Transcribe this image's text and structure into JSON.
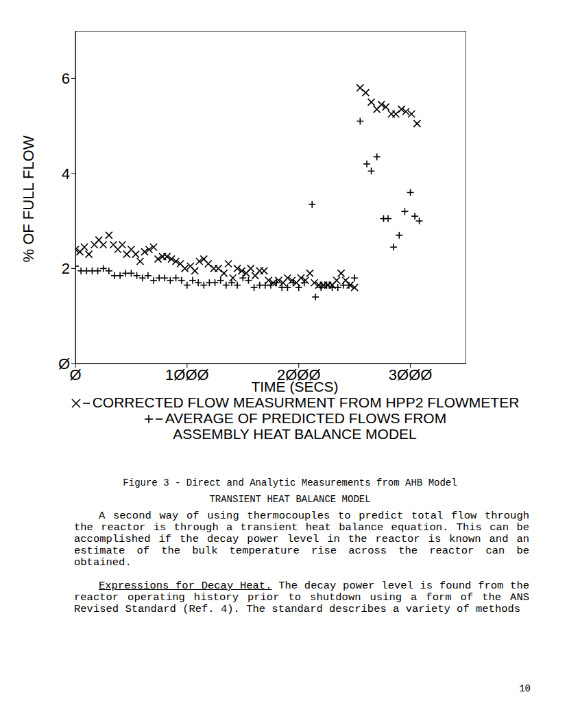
{
  "chart_data": {
    "type": "scatter",
    "x_label": "TIME (SECS)",
    "y_label": "% OF FULL FLOW",
    "xlim": [
      0,
      3500
    ],
    "ylim": [
      0,
      7
    ],
    "xticks": [
      {
        "value": 0,
        "label": "Ø"
      },
      {
        "value": 1000,
        "label": "1ØØØ"
      },
      {
        "value": 2000,
        "label": "2ØØØ"
      },
      {
        "value": 3000,
        "label": "3ØØØ"
      }
    ],
    "yticks": [
      {
        "value": 0,
        "label": "Ø"
      },
      2,
      4,
      6
    ],
    "grid": false,
    "series": [
      {
        "name": "CORRECTED FLOW MEASURMENT FROM HPP2 FLOWMETER",
        "color": "#000000",
        "marker": "x",
        "x": [
          0,
          40,
          80,
          120,
          170,
          210,
          250,
          300,
          340,
          380,
          420,
          460,
          500,
          540,
          580,
          620,
          660,
          700,
          740,
          780,
          820,
          860,
          900,
          940,
          980,
          1030,
          1070,
          1110,
          1150,
          1190,
          1240,
          1280,
          1330,
          1370,
          1410,
          1450,
          1490,
          1530,
          1570,
          1610,
          1650,
          1690,
          1730,
          1770,
          1820,
          1860,
          1900,
          1940,
          1980,
          2020,
          2060,
          2100,
          2140,
          2180,
          2220,
          2260,
          2300,
          2340,
          2380,
          2420,
          2460,
          2500,
          2550,
          2600,
          2650,
          2700,
          2740,
          2780,
          2830,
          2870,
          2920,
          2960,
          3010,
          3060
        ],
        "values": [
          2.4,
          2.35,
          2.45,
          2.3,
          2.5,
          2.6,
          2.5,
          2.7,
          2.5,
          2.4,
          2.5,
          2.3,
          2.4,
          2.3,
          2.15,
          2.35,
          2.4,
          2.45,
          2.2,
          2.25,
          2.25,
          2.2,
          2.15,
          2.1,
          2.0,
          2.05,
          1.95,
          2.15,
          2.2,
          2.1,
          2.0,
          2.0,
          1.9,
          2.1,
          1.8,
          2.0,
          1.95,
          1.9,
          2.0,
          1.85,
          1.95,
          1.95,
          1.75,
          1.7,
          1.75,
          1.7,
          1.8,
          1.75,
          1.7,
          1.8,
          1.75,
          1.9,
          1.7,
          1.65,
          1.65,
          1.65,
          1.65,
          1.75,
          1.9,
          1.75,
          1.65,
          1.6,
          5.8,
          5.7,
          5.5,
          5.35,
          5.45,
          5.4,
          5.25,
          5.25,
          5.35,
          5.3,
          5.25,
          5.05
        ]
      },
      {
        "name": "AVERAGE OF PREDICTED FLOWS FROM ASSEMBLY HEAT BALANCE MODEL",
        "color": "#000000",
        "marker": "plus",
        "x": [
          0,
          50,
          100,
          150,
          200,
          250,
          300,
          350,
          400,
          450,
          500,
          550,
          600,
          650,
          700,
          750,
          800,
          850,
          900,
          950,
          1000,
          1050,
          1100,
          1150,
          1200,
          1250,
          1300,
          1350,
          1400,
          1450,
          1500,
          1550,
          1600,
          1650,
          1700,
          1750,
          1800,
          1850,
          1900,
          1950,
          2000,
          2050,
          2120,
          2150,
          2200,
          2250,
          2300,
          2350,
          2400,
          2450,
          2500,
          2550,
          2610,
          2650,
          2700,
          2760,
          2800,
          2850,
          2900,
          2950,
          3000,
          3040,
          3080
        ],
        "values": [
          2.05,
          1.95,
          1.95,
          1.95,
          1.95,
          2.0,
          1.95,
          1.85,
          1.85,
          1.9,
          1.9,
          1.85,
          1.8,
          1.85,
          1.75,
          1.8,
          1.8,
          1.75,
          1.8,
          1.75,
          1.65,
          1.75,
          1.7,
          1.65,
          1.7,
          1.7,
          1.75,
          1.65,
          1.7,
          1.65,
          1.8,
          1.75,
          1.6,
          1.65,
          1.65,
          1.65,
          1.7,
          1.6,
          1.6,
          1.7,
          1.6,
          1.7,
          3.35,
          1.4,
          1.6,
          1.65,
          1.6,
          1.6,
          1.65,
          1.65,
          1.8,
          5.1,
          4.2,
          4.05,
          4.35,
          3.05,
          3.05,
          2.45,
          2.7,
          3.2,
          3.6,
          3.1,
          3.0
        ]
      }
    ]
  },
  "caption": "Figure 3 - Direct and Analytic Measurements from AHB Model",
  "section": {
    "heading": "TRANSIENT HEAT BALANCE MODEL",
    "paragraphs": [
      {
        "text": "A second way of using thermocouples to predict total flow through the reactor is through a transient heat balance equation. This can be accomplished if the decay power level in the reactor is known and an estimate of the bulk temperature rise across the reactor can be obtained."
      },
      {
        "run_in": "Expressions for Decay Heat.",
        "text": "The decay power level is found from the reactor operating history prior to shutdown using a form of the ANS Revised Standard (Ref. 4). The standard describes a variety of methods"
      }
    ]
  },
  "page_number": "10"
}
